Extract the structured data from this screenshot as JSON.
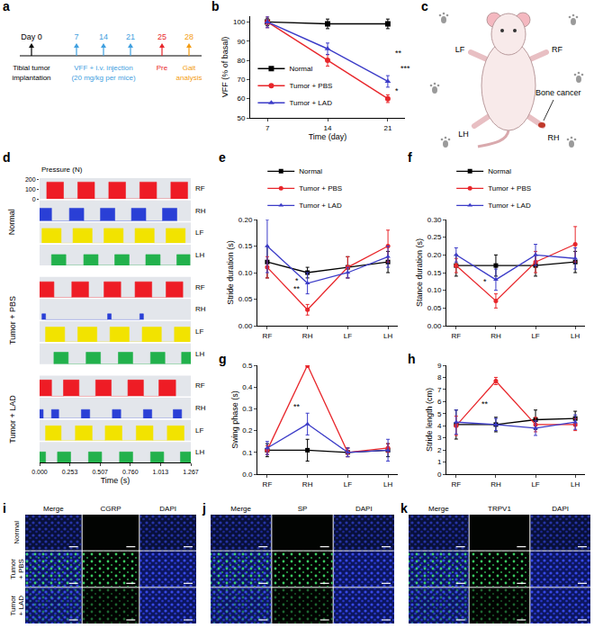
{
  "chart_data": [
    {
      "panel": "b",
      "type": "line",
      "x_label": "Time (day)",
      "y_label": "VFF (% of basal)",
      "x": [
        7,
        14,
        21
      ],
      "xlim": [
        5,
        23
      ],
      "xticks": [
        7,
        14,
        21
      ],
      "ylim": [
        50,
        103
      ],
      "yticks": [
        50,
        60,
        70,
        80,
        90,
        100
      ],
      "legend": "bottom left",
      "series": [
        {
          "name": "Normal",
          "color": "#000000",
          "marker": "square",
          "values": [
            100,
            99,
            99
          ],
          "errors": [
            2,
            2.5,
            2.5
          ]
        },
        {
          "name": "Tumor + PBS",
          "color": "#e8262b",
          "marker": "circle",
          "values": [
            100,
            80,
            60
          ],
          "errors": [
            3,
            3,
            2
          ]
        },
        {
          "name": "Tumor + LAD",
          "color": "#3c3cc8",
          "marker": "triangle-up",
          "values": [
            100,
            86,
            69
          ],
          "errors": [
            3,
            3,
            3
          ]
        }
      ],
      "annotations": [
        {
          "text": "**",
          "x": 21.6,
          "y": 84
        },
        {
          "text": "***",
          "x": 22.3,
          "y": 76
        },
        {
          "text": "*",
          "x": 21.6,
          "y": 64
        }
      ]
    },
    {
      "panel": "d",
      "type": "step",
      "x_label": "Time (s)",
      "y_label": "Pressure (N)",
      "xlim": [
        0,
        1.267
      ],
      "xticks": [
        {
          "value": 0,
          "label": "0.000"
        },
        {
          "value": 0.253,
          "label": "0.253"
        },
        {
          "value": 0.507,
          "label": "0.507"
        },
        {
          "value": 0.76,
          "label": "0.760"
        },
        {
          "value": 1.013,
          "label": "1.013"
        },
        {
          "value": 1.267,
          "label": "1.267"
        }
      ],
      "ylim": [
        0,
        210
      ],
      "yticks": [
        0,
        100,
        200
      ],
      "groups": [
        {
          "name": "Normal",
          "series": [
            {
              "name": "RF",
              "color": "#ee1c25",
              "contacts": [
                [
                  0.06,
                  0.2,
                  170
                ],
                [
                  0.32,
                  0.46,
                  170
                ],
                [
                  0.58,
                  0.72,
                  170
                ],
                [
                  0.84,
                  0.98,
                  170
                ],
                [
                  1.1,
                  1.24,
                  170
                ]
              ]
            },
            {
              "name": "RH",
              "color": "#2a3fd6",
              "contacts": [
                [
                  0.0,
                  0.1,
                  130
                ],
                [
                  0.25,
                  0.37,
                  130
                ],
                [
                  0.51,
                  0.63,
                  130
                ],
                [
                  0.77,
                  0.89,
                  130
                ],
                [
                  1.03,
                  1.15,
                  130
                ]
              ]
            },
            {
              "name": "LF",
              "color": "#f2e300",
              "contacts": [
                [
                  0.02,
                  0.18,
                  150
                ],
                [
                  0.28,
                  0.44,
                  150
                ],
                [
                  0.54,
                  0.7,
                  150
                ],
                [
                  0.8,
                  0.96,
                  150
                ],
                [
                  1.06,
                  1.22,
                  150
                ]
              ]
            },
            {
              "name": "LH",
              "color": "#22b14c",
              "contacts": [
                [
                  0.1,
                  0.22,
                  110
                ],
                [
                  0.37,
                  0.49,
                  110
                ],
                [
                  0.63,
                  0.75,
                  110
                ],
                [
                  0.89,
                  1.01,
                  110
                ],
                [
                  1.15,
                  1.26,
                  110
                ]
              ]
            }
          ]
        },
        {
          "name": "Tumor + PBS",
          "series": [
            {
              "name": "RF",
              "color": "#ee1c25",
              "contacts": [
                [
                  0.0,
                  0.12,
                  160
                ],
                [
                  0.27,
                  0.41,
                  160
                ],
                [
                  0.54,
                  0.68,
                  160
                ],
                [
                  0.8,
                  0.94,
                  160
                ],
                [
                  1.06,
                  1.2,
                  160
                ]
              ]
            },
            {
              "name": "RH",
              "color": "#2a3fd6",
              "contacts": [
                [
                  0.02,
                  0.05,
                  60
                ],
                [
                  0.57,
                  0.6,
                  60
                ],
                [
                  0.84,
                  0.87,
                  60
                ]
              ]
            },
            {
              "name": "LF",
              "color": "#f2e300",
              "contacts": [
                [
                  0.05,
                  0.21,
                  150
                ],
                [
                  0.32,
                  0.48,
                  150
                ],
                [
                  0.59,
                  0.75,
                  150
                ],
                [
                  0.86,
                  1.02,
                  150
                ],
                [
                  1.13,
                  1.26,
                  150
                ]
              ]
            },
            {
              "name": "LH",
              "color": "#22b14c",
              "contacts": [
                [
                  0.12,
                  0.24,
                  120
                ],
                [
                  0.39,
                  0.51,
                  120
                ],
                [
                  0.66,
                  0.78,
                  120
                ],
                [
                  0.93,
                  1.05,
                  120
                ],
                [
                  1.19,
                  1.267,
                  120
                ]
              ]
            }
          ]
        },
        {
          "name": "Tumor + LAD",
          "series": [
            {
              "name": "RF",
              "color": "#ee1c25",
              "contacts": [
                [
                  0.0,
                  0.1,
                  165
                ],
                [
                  0.2,
                  0.33,
                  165
                ],
                [
                  0.47,
                  0.6,
                  165
                ],
                [
                  0.74,
                  0.87,
                  165
                ],
                [
                  1.0,
                  1.14,
                  165
                ]
              ]
            },
            {
              "name": "RH",
              "color": "#2a3fd6",
              "contacts": [
                [
                  0.0,
                  0.03,
                  90
                ],
                [
                  0.1,
                  0.16,
                  90
                ],
                [
                  0.35,
                  0.42,
                  90
                ],
                [
                  0.61,
                  0.68,
                  90
                ],
                [
                  0.87,
                  0.94,
                  90
                ],
                [
                  1.12,
                  1.19,
                  90
                ]
              ]
            },
            {
              "name": "LF",
              "color": "#f2e300",
              "contacts": [
                [
                  0.05,
                  0.18,
                  150
                ],
                [
                  0.3,
                  0.44,
                  150
                ],
                [
                  0.55,
                  0.69,
                  150
                ],
                [
                  0.81,
                  0.95,
                  150
                ],
                [
                  1.07,
                  1.21,
                  150
                ]
              ]
            },
            {
              "name": "LH",
              "color": "#22b14c",
              "contacts": [
                [
                  0.0,
                  0.05,
                  110
                ],
                [
                  0.15,
                  0.26,
                  110
                ],
                [
                  0.41,
                  0.52,
                  110
                ],
                [
                  0.67,
                  0.78,
                  110
                ],
                [
                  0.93,
                  1.04,
                  110
                ],
                [
                  1.18,
                  1.267,
                  110
                ]
              ]
            }
          ]
        }
      ]
    },
    {
      "panel": "e",
      "type": "line",
      "y_label": "Stride duration (s)",
      "categories": [
        "RF",
        "RH",
        "LF",
        "LH"
      ],
      "ylim": [
        0,
        0.2
      ],
      "yticks": [
        {
          "value": 0,
          "label": "0.00"
        },
        {
          "value": 0.05,
          "label": "0.05"
        },
        {
          "value": 0.1,
          "label": "0.10"
        },
        {
          "value": 0.15,
          "label": "0.15"
        },
        {
          "value": 0.2,
          "label": "0.20"
        }
      ],
      "legend": "top",
      "series": [
        {
          "name": "Normal",
          "color": "#000000",
          "marker": "square",
          "values": [
            0.12,
            0.1,
            0.11,
            0.12
          ],
          "errors": [
            0.03,
            0.01,
            0.02,
            0.02
          ]
        },
        {
          "name": "Tumor + PBS",
          "color": "#e8262b",
          "marker": "circle",
          "values": [
            0.11,
            0.03,
            0.11,
            0.15
          ],
          "errors": [
            0.02,
            0.01,
            0.02,
            0.03
          ]
        },
        {
          "name": "Tumor + LAD",
          "color": "#3c3cc8",
          "marker": "triangle-up",
          "values": [
            0.15,
            0.08,
            0.1,
            0.13
          ],
          "errors": [
            0.05,
            0.02,
            0.01,
            0.02
          ]
        }
      ],
      "annotations": [
        {
          "text": "**",
          "x": "RH",
          "y": 0.07
        },
        {
          "text": "*",
          "x": "RH",
          "y": 0.085
        }
      ]
    },
    {
      "panel": "f",
      "type": "line",
      "y_label": "Stance duration (s)",
      "categories": [
        "RF",
        "RH",
        "LF",
        "LH"
      ],
      "ylim": [
        0,
        0.3
      ],
      "yticks": [
        {
          "value": 0,
          "label": "0.00"
        },
        {
          "value": 0.05,
          "label": "0.05"
        },
        {
          "value": 0.1,
          "label": "0.10"
        },
        {
          "value": 0.15,
          "label": "0.15"
        },
        {
          "value": 0.2,
          "label": "0.20"
        },
        {
          "value": 0.25,
          "label": "0.25"
        },
        {
          "value": 0.3,
          "label": "0.30"
        }
      ],
      "legend": "top",
      "series": [
        {
          "name": "Normal",
          "color": "#000000",
          "marker": "square",
          "values": [
            0.17,
            0.17,
            0.17,
            0.18
          ],
          "errors": [
            0.03,
            0.03,
            0.03,
            0.03
          ]
        },
        {
          "name": "Tumor + PBS",
          "color": "#e8262b",
          "marker": "circle",
          "values": [
            0.17,
            0.07,
            0.18,
            0.23
          ],
          "errors": [
            0.02,
            0.02,
            0.03,
            0.05
          ]
        },
        {
          "name": "Tumor + LAD",
          "color": "#3c3cc8",
          "marker": "triangle-up",
          "values": [
            0.2,
            0.13,
            0.2,
            0.19
          ],
          "errors": [
            0.02,
            0.03,
            0.03,
            0.03
          ]
        }
      ],
      "annotations": [
        {
          "text": "*",
          "x": "RH",
          "y": 0.125
        }
      ]
    },
    {
      "panel": "g",
      "type": "line",
      "y_label": "Swing phase (s)",
      "categories": [
        "RF",
        "RH",
        "LF",
        "LH"
      ],
      "ylim": [
        0,
        0.5
      ],
      "yticks": [
        {
          "value": 0,
          "label": "0.0"
        },
        0.1,
        0.2,
        0.3,
        0.4,
        0.5
      ],
      "series": [
        {
          "name": "Normal",
          "color": "#000000",
          "marker": "square",
          "values": [
            0.11,
            0.11,
            0.1,
            0.11
          ],
          "errors": [
            0.03,
            0.05,
            0.02,
            0.03
          ]
        },
        {
          "name": "Tumor + PBS",
          "color": "#e8262b",
          "marker": "circle",
          "values": [
            0.11,
            0.5,
            0.1,
            0.12
          ],
          "errors": [
            0.02,
            0.01,
            0.02,
            0.02
          ]
        },
        {
          "name": "Tumor + LAD",
          "color": "#3c3cc8",
          "marker": "triangle-up",
          "values": [
            0.12,
            0.23,
            0.1,
            0.11
          ],
          "errors": [
            0.03,
            0.05,
            0.02,
            0.05
          ]
        }
      ],
      "annotations": [
        {
          "text": "**",
          "x": "RH",
          "y": 0.31
        }
      ]
    },
    {
      "panel": "h",
      "type": "line",
      "y_label": "Stride length (cm)",
      "categories": [
        "RF",
        "RH",
        "LF",
        "LH"
      ],
      "ylim": [
        0,
        9
      ],
      "yticks": [
        0,
        1,
        2,
        3,
        4,
        5,
        6,
        7,
        8,
        9
      ],
      "series": [
        {
          "name": "Normal",
          "color": "#000000",
          "marker": "square",
          "values": [
            4.1,
            4.1,
            4.5,
            4.6
          ],
          "errors": [
            1.2,
            0.6,
            0.8,
            0.6
          ]
        },
        {
          "name": "Tumor + PBS",
          "color": "#e8262b",
          "marker": "circle",
          "values": [
            4.0,
            7.7,
            4.1,
            4.1
          ],
          "errors": [
            0.8,
            0.3,
            0.6,
            0.5
          ]
        },
        {
          "name": "Tumor + LAD",
          "color": "#3c3cc8",
          "marker": "triangle-up",
          "values": [
            4.3,
            4.1,
            3.8,
            4.3
          ],
          "errors": [
            1.0,
            0.5,
            0.6,
            0.6
          ]
        }
      ],
      "annotations": [
        {
          "text": "**",
          "x": "RH",
          "y": 5.8
        }
      ]
    }
  ],
  "diagrams": {
    "a": {
      "panel": "a",
      "timeline": [
        {
          "label": "Day 0",
          "color": "#000000"
        },
        {
          "label": "7",
          "color": "#3fa0e0"
        },
        {
          "label": "14",
          "color": "#3fa0e0"
        },
        {
          "label": "21",
          "color": "#3fa0e0"
        },
        {
          "label": "25",
          "color": "#e8262b"
        },
        {
          "label": "28",
          "color": "#f39c12"
        }
      ],
      "notes": [
        {
          "text": "Tibial tumor implantation",
          "under": "Day 0",
          "color": "#000000"
        },
        {
          "text": "VFF + i.v. injection",
          "under": "14",
          "color": "#3fa0e0"
        },
        {
          "text": "(20 mg/kg per mice)",
          "under": "14",
          "color": "#3fa0e0"
        },
        {
          "text": "Pre",
          "under": "25",
          "color": "#e8262b"
        },
        {
          "text": "Gait analysis",
          "under": "28",
          "color": "#f39c12"
        }
      ]
    },
    "c": {
      "panel": "c",
      "paws": {
        "LF": "LF",
        "RF": "RF",
        "LH": "LH",
        "RH": "RH"
      },
      "note": "Bone cancer"
    }
  },
  "microscopy": {
    "rows": [
      "Normal",
      "Tumor + PBS",
      "Tumor + LAD"
    ],
    "panels": [
      {
        "panel": "i",
        "columns": [
          "Merge",
          "CGRP",
          "DAPI"
        ],
        "row_labels": true
      },
      {
        "panel": "j",
        "columns": [
          "Merge",
          "SP",
          "DAPI"
        ],
        "row_labels": false
      },
      {
        "panel": "k",
        "columns": [
          "Merge",
          "TRPV1",
          "DAPI"
        ],
        "row_labels": false
      }
    ]
  }
}
